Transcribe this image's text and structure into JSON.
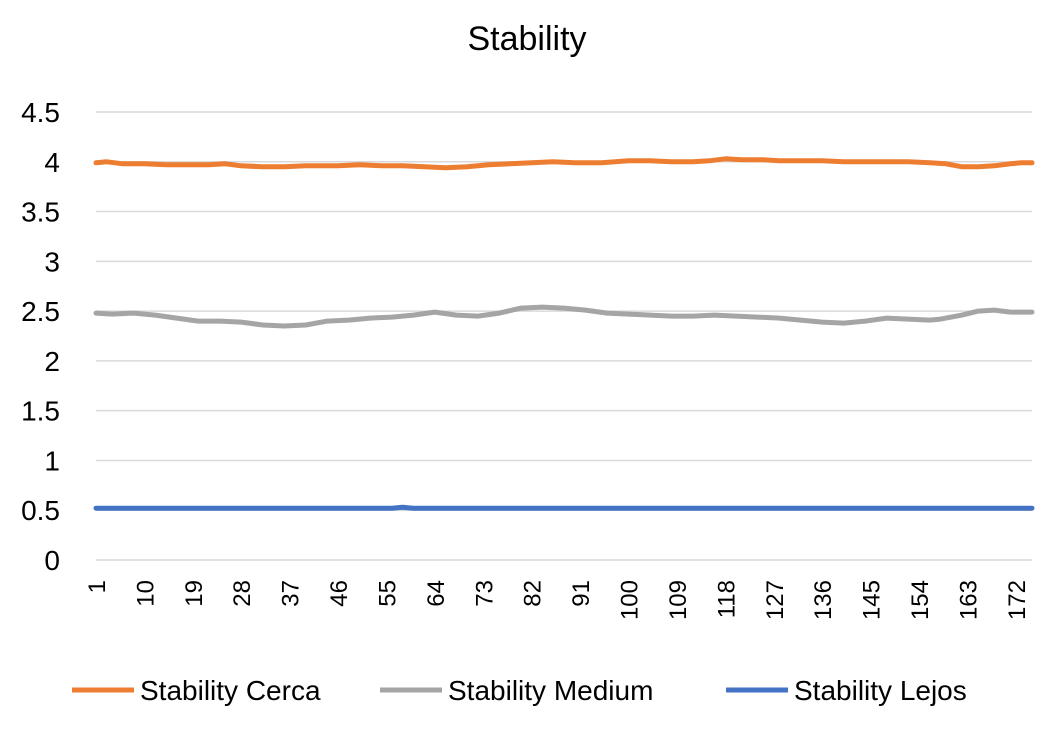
{
  "chart_data": {
    "type": "line",
    "title": "Stability",
    "xlabel": "",
    "ylabel": "",
    "ylim": [
      0,
      4.5
    ],
    "y_ticks": [
      "0",
      "0.5",
      "1",
      "1.5",
      "2",
      "2.5",
      "3",
      "3.5",
      "4",
      "4.5"
    ],
    "x_range": [
      1,
      175
    ],
    "x_ticks": [
      "1",
      "10",
      "19",
      "28",
      "37",
      "46",
      "55",
      "64",
      "73",
      "82",
      "91",
      "100",
      "109",
      "118",
      "127",
      "136",
      "145",
      "154",
      "163",
      "172"
    ],
    "grid": true,
    "legend_position": "bottom",
    "series": [
      {
        "name": "Stability Cerca",
        "color": "#ed7d31",
        "points": [
          [
            1,
            3.99
          ],
          [
            3,
            4.0
          ],
          [
            6,
            3.98
          ],
          [
            10,
            3.98
          ],
          [
            14,
            3.97
          ],
          [
            18,
            3.97
          ],
          [
            22,
            3.97
          ],
          [
            25,
            3.98
          ],
          [
            28,
            3.96
          ],
          [
            32,
            3.95
          ],
          [
            36,
            3.95
          ],
          [
            40,
            3.96
          ],
          [
            46,
            3.96
          ],
          [
            50,
            3.97
          ],
          [
            54,
            3.96
          ],
          [
            58,
            3.96
          ],
          [
            62,
            3.95
          ],
          [
            66,
            3.94
          ],
          [
            70,
            3.95
          ],
          [
            74,
            3.97
          ],
          [
            78,
            3.98
          ],
          [
            82,
            3.99
          ],
          [
            86,
            4.0
          ],
          [
            90,
            3.99
          ],
          [
            95,
            3.99
          ],
          [
            100,
            4.01
          ],
          [
            104,
            4.01
          ],
          [
            108,
            4.0
          ],
          [
            112,
            4.0
          ],
          [
            115,
            4.01
          ],
          [
            118,
            4.03
          ],
          [
            121,
            4.02
          ],
          [
            125,
            4.02
          ],
          [
            128,
            4.01
          ],
          [
            132,
            4.01
          ],
          [
            136,
            4.01
          ],
          [
            140,
            4.0
          ],
          [
            144,
            4.0
          ],
          [
            148,
            4.0
          ],
          [
            152,
            4.0
          ],
          [
            156,
            3.99
          ],
          [
            159,
            3.98
          ],
          [
            162,
            3.95
          ],
          [
            165,
            3.95
          ],
          [
            168,
            3.96
          ],
          [
            171,
            3.98
          ],
          [
            173,
            3.99
          ],
          [
            175,
            3.99
          ]
        ]
      },
      {
        "name": "Stability Medium",
        "color": "#a5a5a5",
        "points": [
          [
            1,
            2.48
          ],
          [
            4,
            2.47
          ],
          [
            8,
            2.48
          ],
          [
            12,
            2.46
          ],
          [
            16,
            2.43
          ],
          [
            20,
            2.4
          ],
          [
            24,
            2.4
          ],
          [
            28,
            2.39
          ],
          [
            32,
            2.36
          ],
          [
            36,
            2.35
          ],
          [
            40,
            2.36
          ],
          [
            44,
            2.4
          ],
          [
            48,
            2.41
          ],
          [
            52,
            2.43
          ],
          [
            56,
            2.44
          ],
          [
            60,
            2.46
          ],
          [
            64,
            2.49
          ],
          [
            68,
            2.46
          ],
          [
            72,
            2.45
          ],
          [
            76,
            2.48
          ],
          [
            80,
            2.53
          ],
          [
            84,
            2.54
          ],
          [
            88,
            2.53
          ],
          [
            92,
            2.51
          ],
          [
            96,
            2.48
          ],
          [
            100,
            2.47
          ],
          [
            104,
            2.46
          ],
          [
            108,
            2.45
          ],
          [
            112,
            2.45
          ],
          [
            116,
            2.46
          ],
          [
            120,
            2.45
          ],
          [
            124,
            2.44
          ],
          [
            128,
            2.43
          ],
          [
            132,
            2.41
          ],
          [
            136,
            2.39
          ],
          [
            140,
            2.38
          ],
          [
            144,
            2.4
          ],
          [
            148,
            2.43
          ],
          [
            152,
            2.42
          ],
          [
            156,
            2.41
          ],
          [
            158,
            2.42
          ],
          [
            162,
            2.46
          ],
          [
            165,
            2.5
          ],
          [
            168,
            2.51
          ],
          [
            171,
            2.49
          ],
          [
            175,
            2.49
          ]
        ]
      },
      {
        "name": "Stability Lejos",
        "color": "#4472c4",
        "points": [
          [
            1,
            0.52
          ],
          [
            56,
            0.52
          ],
          [
            58,
            0.53
          ],
          [
            60,
            0.52
          ],
          [
            175,
            0.52
          ]
        ]
      }
    ]
  }
}
